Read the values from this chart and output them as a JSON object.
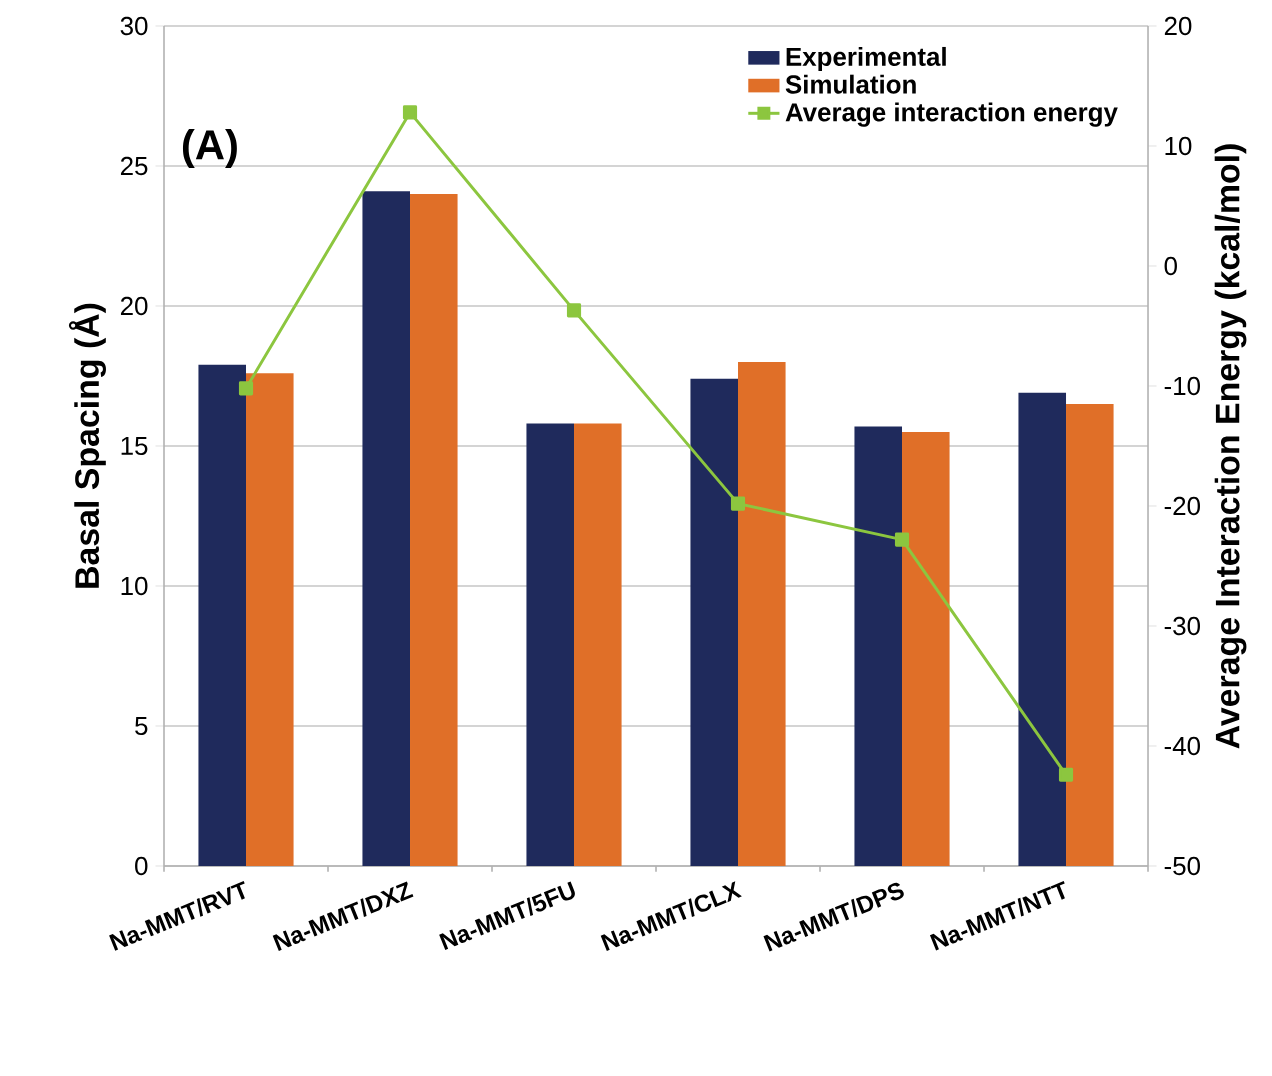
{
  "chart_data": {
    "type": "bar",
    "title": "(A)",
    "categories": [
      "Na-MMT/RVT",
      "Na-MMT/DXZ",
      "Na-MMT/5FU",
      "Na-MMT/CLX",
      "Na-MMT/DPS",
      "Na-MMT/NTT"
    ],
    "ylabel": "Basal Spacing (Å)",
    "y2label": "Average Interaction Energy (kcal/mol)",
    "ylim": [
      0,
      30
    ],
    "yticks": [
      0,
      5,
      10,
      15,
      20,
      25,
      30
    ],
    "y2lim": [
      -50,
      20
    ],
    "y2ticks": [
      -50,
      -40,
      -30,
      -20,
      -10,
      0,
      10,
      20
    ],
    "grid": "y",
    "legend": "top right",
    "marker": "square",
    "series": [
      {
        "name": "Experimental",
        "color": "#1f2a5c",
        "values": [
          17.9,
          24.1,
          15.8,
          17.4,
          15.7,
          16.9
        ]
      },
      {
        "name": "Simulation",
        "color": "#e06f28",
        "values": [
          17.6,
          24.0,
          15.8,
          18.0,
          15.5,
          16.5
        ]
      },
      {
        "name": "Average interaction energy",
        "type": "line",
        "axis": "y2",
        "color": "#8cc63f",
        "values": [
          -10.2,
          12.8,
          -3.7,
          -19.8,
          -22.8,
          -42.4
        ]
      }
    ]
  }
}
